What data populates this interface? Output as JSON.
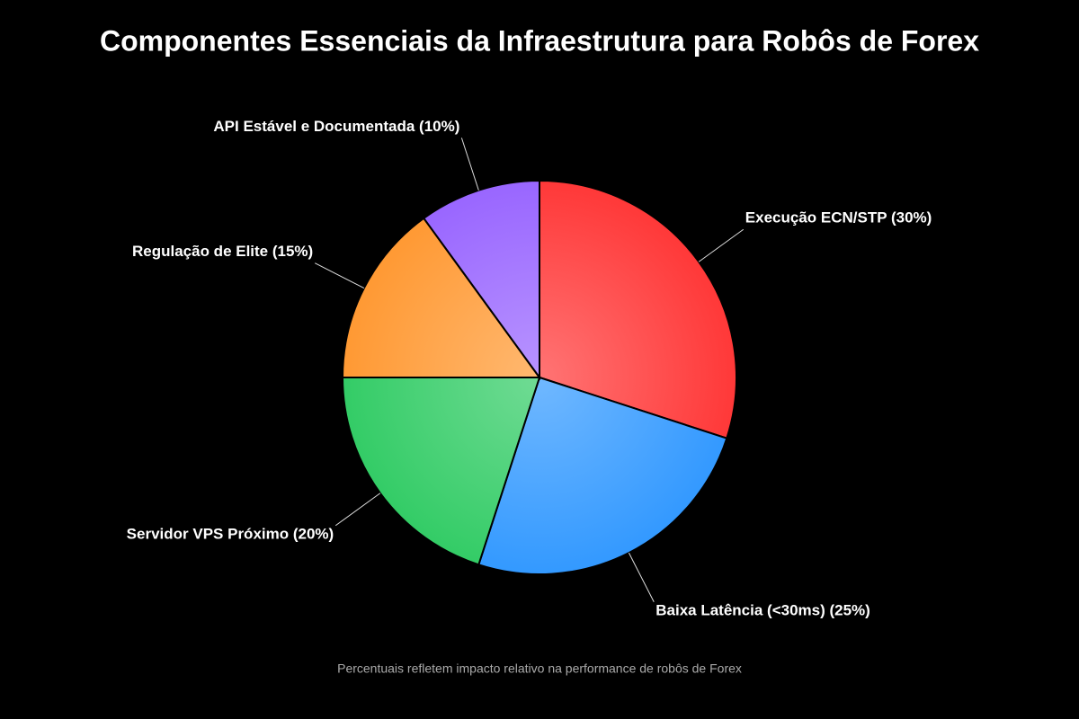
{
  "chart_data": {
    "type": "pie",
    "title": "Componentes Essenciais da Infraestrutura para Robôs de Forex",
    "subtitle": "Percentuais refletem impacto relativo na performance de robôs de Forex",
    "categories": [
      "Execução ECN/STP (30%)",
      "Baixa Latência (<30ms) (25%)",
      "Servidor VPS Próximo (20%)",
      "Regulação de Elite (15%)",
      "API Estável e Documentada (10%)"
    ],
    "values": [
      30,
      25,
      20,
      15,
      10
    ],
    "colors": [
      "#ff3838",
      "#3399ff",
      "#33cc66",
      "#ff9933",
      "#9966ff"
    ]
  }
}
